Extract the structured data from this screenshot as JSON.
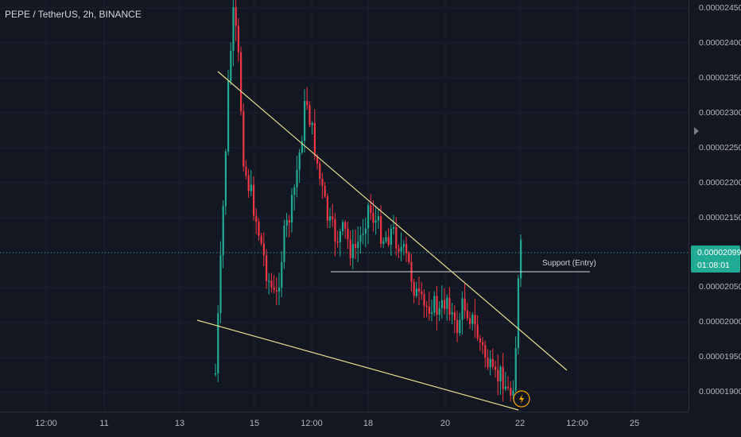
{
  "chart_title": "PEPE / TetherUS, 2h, BINANCE",
  "price_scale_labels": [
    "0.00002450",
    "0.00002400",
    "0.00002350",
    "0.00002300",
    "0.00002250",
    "0.00002200",
    "0.00002150",
    "0.00002050",
    "0.00002000",
    "0.00001950",
    "0.00001900"
  ],
  "current_price": {
    "price": "0.00002099",
    "countdown": "01:08:01"
  },
  "time_scale_labels": [
    "12:00",
    "11",
    "13",
    "15",
    "12:00",
    "18",
    "20",
    "22",
    "12:00",
    "25"
  ],
  "annotations": {
    "support_label": "Support (Entry)"
  },
  "colors": {
    "up": "#22ab94",
    "down": "#f23645",
    "trendline": "#e6dd8f",
    "support": "#d1d4dc",
    "background": "#131722"
  },
  "chart_data": {
    "type": "candlestick",
    "symbol": "PEPE / TetherUS",
    "interval": "2h",
    "exchange": "BINANCE",
    "ylim": [
      1.87e-05,
      2.46e-05
    ],
    "support_level": 2.07e-05,
    "last_price": 2.099e-05,
    "indicators": [
      "descending wedge upper trendline",
      "descending wedge lower trendline",
      "horizontal support line"
    ]
  }
}
